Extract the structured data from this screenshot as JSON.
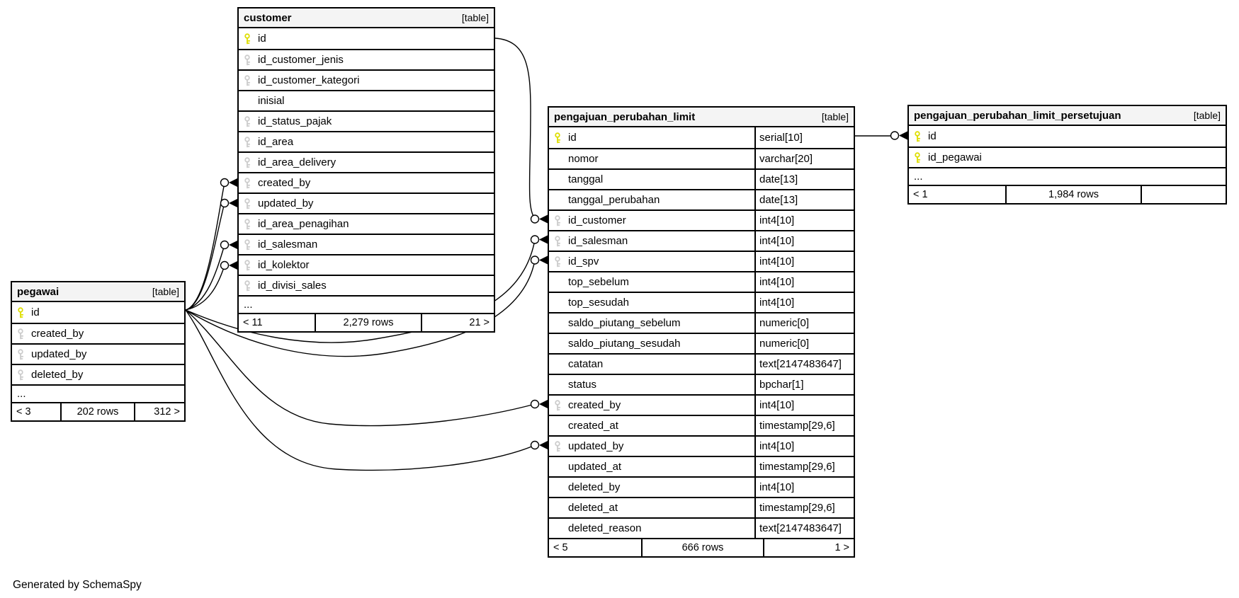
{
  "generated_by": "Generated by SchemaSpy",
  "colors": {
    "pk_key": "#dede00",
    "fk_key": "#cccccc",
    "header_bg": "#f4f4f4",
    "border": "#000000"
  },
  "tables": [
    {
      "name": "pegawai",
      "tag": "[table]",
      "columns": [
        {
          "name": "id",
          "key": "pk"
        },
        {
          "name": "created_by",
          "key": "fk"
        },
        {
          "name": "updated_by",
          "key": "fk"
        },
        {
          "name": "deleted_by",
          "key": "fk"
        }
      ],
      "ellipsis": "...",
      "footer": {
        "left": "< 3",
        "center": "202 rows",
        "right": "312 >"
      }
    },
    {
      "name": "customer",
      "tag": "[table]",
      "columns": [
        {
          "name": "id",
          "key": "pk"
        },
        {
          "name": "id_customer_jenis",
          "key": "fk"
        },
        {
          "name": "id_customer_kategori",
          "key": "fk"
        },
        {
          "name": "inisial",
          "key": "none"
        },
        {
          "name": "id_status_pajak",
          "key": "fk"
        },
        {
          "name": "id_area",
          "key": "fk"
        },
        {
          "name": "id_area_delivery",
          "key": "fk"
        },
        {
          "name": "created_by",
          "key": "fk"
        },
        {
          "name": "updated_by",
          "key": "fk"
        },
        {
          "name": "id_area_penagihan",
          "key": "fk"
        },
        {
          "name": "id_salesman",
          "key": "fk"
        },
        {
          "name": "id_kolektor",
          "key": "fk"
        },
        {
          "name": "id_divisi_sales",
          "key": "fk"
        }
      ],
      "ellipsis": "...",
      "footer": {
        "left": "< 11",
        "center": "2,279 rows",
        "right": "21 >"
      }
    },
    {
      "name": "pengajuan_perubahan_limit",
      "tag": "[table]",
      "columns": [
        {
          "name": "id",
          "key": "pk",
          "type": "serial[10]"
        },
        {
          "name": "nomor",
          "key": "none",
          "type": "varchar[20]"
        },
        {
          "name": "tanggal",
          "key": "none",
          "type": "date[13]"
        },
        {
          "name": "tanggal_perubahan",
          "key": "none",
          "type": "date[13]"
        },
        {
          "name": "id_customer",
          "key": "fk",
          "type": "int4[10]"
        },
        {
          "name": "id_salesman",
          "key": "fk",
          "type": "int4[10]"
        },
        {
          "name": "id_spv",
          "key": "fk",
          "type": "int4[10]"
        },
        {
          "name": "top_sebelum",
          "key": "none",
          "type": "int4[10]"
        },
        {
          "name": "top_sesudah",
          "key": "none",
          "type": "int4[10]"
        },
        {
          "name": "saldo_piutang_sebelum",
          "key": "none",
          "type": "numeric[0]"
        },
        {
          "name": "saldo_piutang_sesudah",
          "key": "none",
          "type": "numeric[0]"
        },
        {
          "name": "catatan",
          "key": "none",
          "type": "text[2147483647]"
        },
        {
          "name": "status",
          "key": "none",
          "type": "bpchar[1]"
        },
        {
          "name": "created_by",
          "key": "fk",
          "type": "int4[10]"
        },
        {
          "name": "created_at",
          "key": "none",
          "type": "timestamp[29,6]"
        },
        {
          "name": "updated_by",
          "key": "fk",
          "type": "int4[10]"
        },
        {
          "name": "updated_at",
          "key": "none",
          "type": "timestamp[29,6]"
        },
        {
          "name": "deleted_by",
          "key": "none",
          "type": "int4[10]"
        },
        {
          "name": "deleted_at",
          "key": "none",
          "type": "timestamp[29,6]"
        },
        {
          "name": "deleted_reason",
          "key": "none",
          "type": "text[2147483647]"
        }
      ],
      "footer": {
        "left": "< 5",
        "center": "666 rows",
        "right": "1 >"
      }
    },
    {
      "name": "pengajuan_perubahan_limit_persetujuan",
      "tag": "[table]",
      "columns": [
        {
          "name": "id",
          "key": "pk"
        },
        {
          "name": "id_pegawai",
          "key": "pk"
        }
      ],
      "ellipsis": "...",
      "footer": {
        "left": "< 1",
        "center": "1,984 rows",
        "right": ""
      }
    }
  ]
}
